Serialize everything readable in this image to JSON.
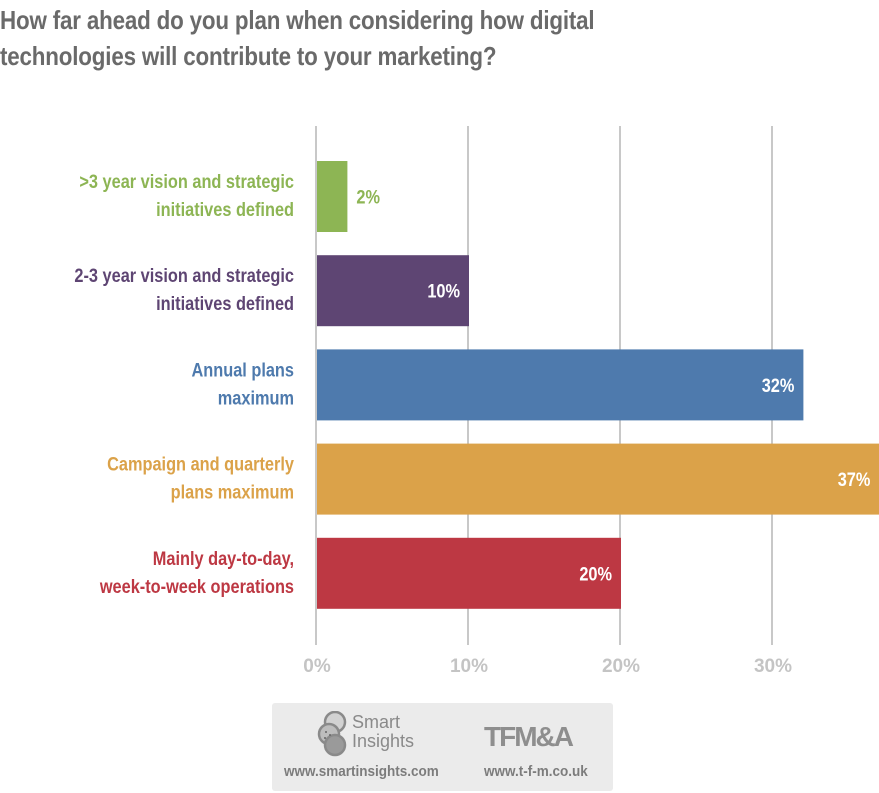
{
  "chart_data": {
    "type": "bar",
    "orientation": "horizontal",
    "title": "How far ahead do you plan when considering how digital technologies will contribute to your marketing?",
    "title_lines": [
      "How far ahead do you plan when considering how digital",
      "technologies will contribute to your marketing?"
    ],
    "xlabel": "",
    "ylabel": "",
    "xlim": [
      0,
      37
    ],
    "grid": true,
    "legend": "none",
    "x_ticks": [
      0,
      10,
      20,
      30
    ],
    "x_tick_labels": [
      "0%",
      "10%",
      "20%",
      "30%"
    ],
    "categories": [
      ">3 year vision and strategic initiatives defined",
      "2-3 year vision and strategic initiatives defined",
      "Annual plans maximum",
      "Campaign and quarterly plans maximum",
      "Mainly day-to-day, week-to-week operations"
    ],
    "category_label_lines": [
      [
        ">3 year vision and strategic",
        "initiatives defined"
      ],
      [
        "2-3 year vision and strategic",
        "initiatives defined"
      ],
      [
        "Annual plans",
        "maximum"
      ],
      [
        "Campaign and quarterly",
        "plans maximum"
      ],
      [
        "Mainly day-to-day,",
        "week-to-week operations"
      ]
    ],
    "values": [
      2,
      10,
      32,
      37,
      20
    ],
    "value_labels": [
      "2%",
      "10%",
      "32%",
      "37%",
      "20%"
    ],
    "colors": [
      "#8db554",
      "#5e4573",
      "#4e7aad",
      "#dba249",
      "#bd3843"
    ],
    "value_label_inside": [
      false,
      true,
      true,
      true,
      true
    ]
  },
  "footer": {
    "smart_insights_logo_line1": "Smart",
    "smart_insights_logo_line2": "Insights",
    "tfma_logo": "TFM&A",
    "smart_insights_url": "www.smartinsights.com",
    "tfma_url": "www.t-f-m.co.uk"
  },
  "colors": {
    "title": "#6a6a6a",
    "gridline": "#c8c8c8",
    "tick_label": "#c4c4c4",
    "footer_bg": "#ebebeb"
  }
}
